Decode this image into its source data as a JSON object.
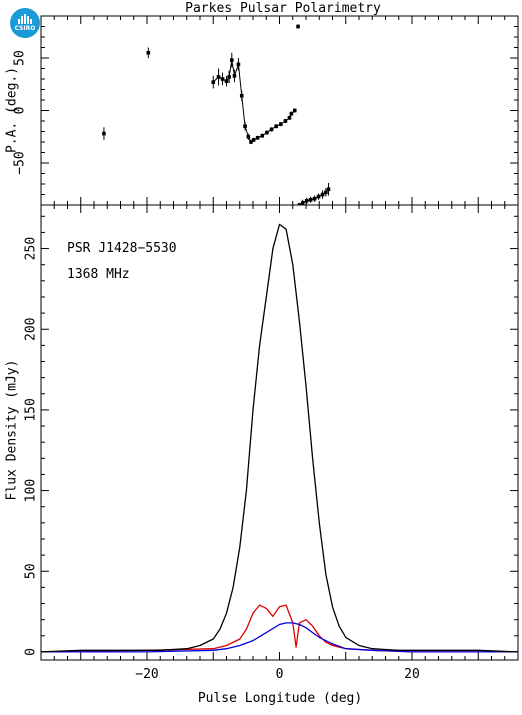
{
  "logo": {
    "text": "CSIRO",
    "color": "#1a9ad6"
  },
  "chart_data": [
    {
      "type": "scatter",
      "title": "Parkes Pulsar Polarimetry",
      "xlabel": "",
      "ylabel": "P.A. (deg.)",
      "xlim": [
        -36,
        36
      ],
      "ylim": [
        -90,
        90
      ],
      "yticks": [
        -50,
        0,
        50
      ],
      "grid": false,
      "series": [
        {
          "x": [
            -26.5,
            -19.8,
            -10,
            -9.2,
            -8.6,
            -8,
            -7.6,
            -7.2,
            -6.8,
            -6.2,
            -5.7,
            -5.2,
            -4.7,
            -4.3,
            -3.9,
            -3.3,
            -2.6,
            -1.9,
            -1.2,
            -0.5,
            0.2,
            0.9,
            1.5,
            1.8,
            2.3,
            3.0,
            3.5,
            4.1,
            4.7,
            5.3,
            5.9,
            6.5,
            7.0,
            7.4,
            2.8
          ],
          "y": [
            -22,
            55,
            27,
            32,
            30,
            28,
            32,
            48,
            33,
            44,
            14,
            -15,
            -25,
            -30,
            -28,
            -26,
            -24,
            -21,
            -18,
            -15,
            -13,
            -10,
            -7,
            -3,
            0,
            -90,
            -88,
            -86,
            -85,
            -84,
            -82,
            -80,
            -78,
            -75,
            80
          ],
          "err": [
            6,
            5,
            6,
            8,
            6,
            5,
            6,
            7,
            6,
            6,
            5,
            4,
            3,
            2,
            2,
            2,
            2,
            2,
            2,
            2,
            2,
            2,
            2,
            2,
            2,
            2,
            3,
            3,
            3,
            3,
            3,
            4,
            4,
            6,
            2
          ]
        }
      ]
    },
    {
      "type": "line",
      "title": "",
      "xlabel": "Pulse Longitude (deg)",
      "ylabel": "Flux Density (mJy)",
      "xlim": [
        -36,
        36
      ],
      "ylim": [
        -5,
        277
      ],
      "xticks": [
        -20,
        0,
        20
      ],
      "yticks": [
        0,
        50,
        100,
        150,
        200,
        250
      ],
      "grid": false,
      "annotations": [
        "PSR J1428−5530",
        "1368 MHz"
      ],
      "series": [
        {
          "color": "#000000",
          "x": [
            -36,
            -30,
            -24,
            -18,
            -14,
            -12,
            -10,
            -9,
            -8,
            -7,
            -6,
            -5,
            -4,
            -3,
            -2,
            -1,
            0,
            1,
            2,
            3,
            4,
            5,
            6,
            7,
            8,
            9,
            10,
            12,
            14,
            18,
            24,
            30,
            36
          ],
          "y": [
            0,
            1,
            1,
            1,
            2,
            4,
            8,
            14,
            24,
            40,
            65,
            100,
            150,
            190,
            220,
            250,
            265,
            262,
            240,
            205,
            165,
            120,
            80,
            48,
            28,
            16,
            9,
            4,
            2,
            1,
            1,
            1,
            0
          ]
        },
        {
          "color": "#e00000",
          "x": [
            -36,
            -20,
            -10,
            -8,
            -6,
            -5,
            -4,
            -3,
            -2,
            -1,
            0,
            1,
            2,
            2.5,
            3,
            4,
            5,
            6,
            7,
            8,
            10,
            14,
            20,
            36
          ],
          "y": [
            0,
            1,
            2,
            4,
            8,
            14,
            24,
            29,
            27,
            22,
            28,
            29,
            18,
            3,
            18,
            20,
            16,
            10,
            6,
            4,
            2,
            1,
            0,
            0
          ],
          "name": ""
        },
        {
          "color": "#0000e0",
          "x": [
            -36,
            -20,
            -10,
            -8,
            -6,
            -4,
            -2,
            0,
            1,
            2,
            3,
            4,
            5,
            6,
            8,
            10,
            14,
            20,
            36
          ],
          "y": [
            0,
            0,
            1,
            2,
            4,
            7,
            12,
            17,
            18,
            18,
            17,
            15,
            12,
            9,
            5,
            2,
            1,
            0,
            0
          ]
        }
      ]
    }
  ]
}
